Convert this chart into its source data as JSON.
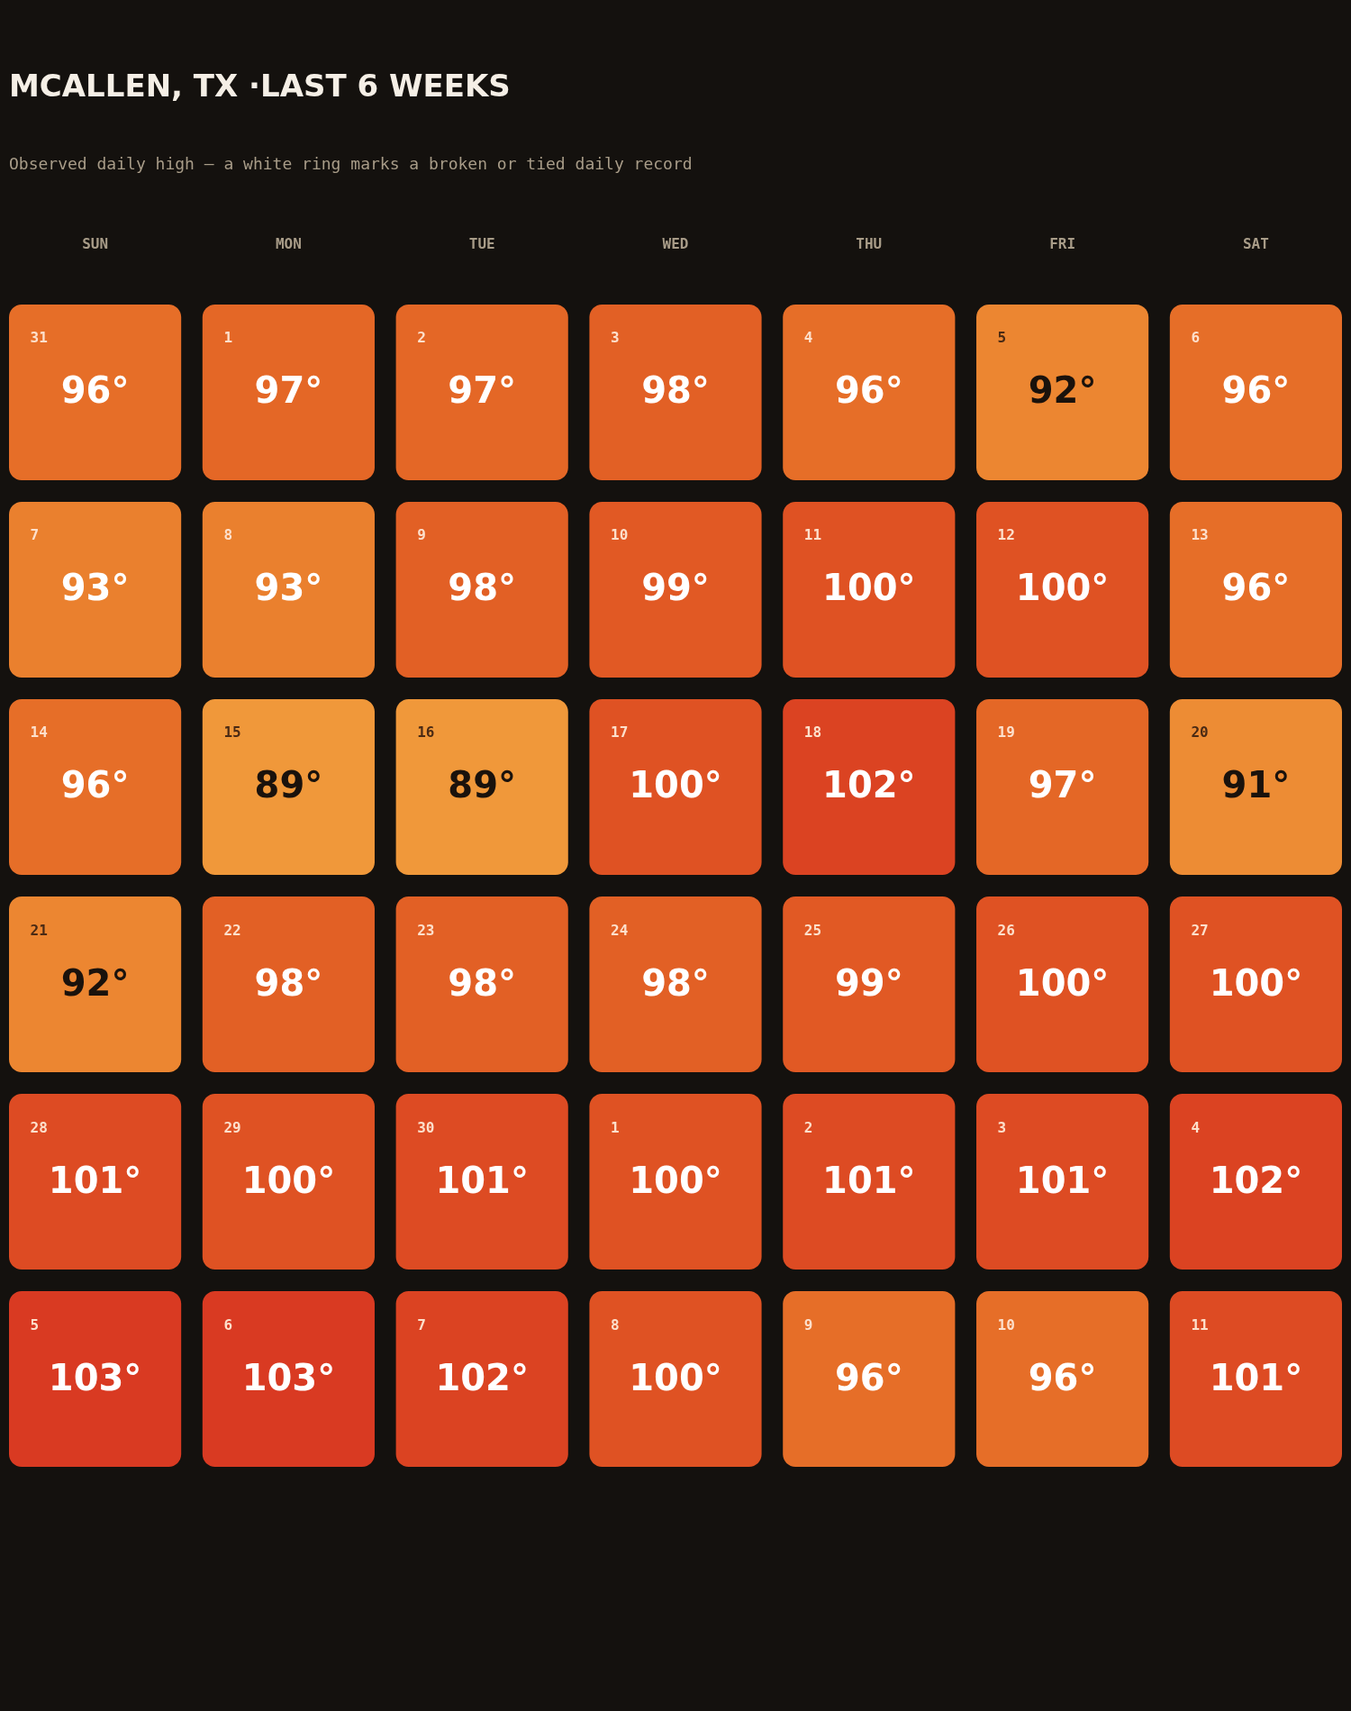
{
  "chart_data": {
    "type": "heatmap",
    "title": "MCALLEN, TX ·LAST 6 WEEKS",
    "subtitle": "Observed daily high — a white ring marks a broken or tied daily record",
    "categories": [
      "SUN",
      "MON",
      "TUE",
      "WED",
      "THU",
      "FRI",
      "SAT"
    ],
    "y_categories": [
      null,
      null,
      null,
      null,
      null,
      null
    ],
    "cells": [
      [
        96,
        97,
        97,
        98,
        96,
        92,
        96
      ],
      [
        93,
        93,
        98,
        99,
        100,
        100,
        96
      ],
      [
        96,
        89,
        89,
        100,
        102,
        97,
        91
      ],
      [
        92,
        98,
        98,
        98,
        99,
        100,
        100
      ],
      [
        101,
        100,
        101,
        100,
        101,
        101,
        102
      ],
      [
        103,
        103,
        102,
        100,
        96,
        96,
        101
      ]
    ],
    "cell_labels": [
      [
        "96°",
        "97°",
        "97°",
        "98°",
        "96°",
        "92°",
        "96°"
      ],
      [
        "93°",
        "93°",
        "98°",
        "99°",
        "100°",
        "100°",
        "96°"
      ],
      [
        "96°",
        "89°",
        "89°",
        "100°",
        "102°",
        "97°",
        "91°"
      ],
      [
        "92°",
        "98°",
        "98°",
        "98°",
        "99°",
        "100°",
        "100°"
      ],
      [
        "101°",
        "100°",
        "101°",
        "100°",
        "101°",
        "101°",
        "102°"
      ],
      [
        "103°",
        "103°",
        "102°",
        "100°",
        "96°",
        "96°",
        "101°"
      ]
    ],
    "annotations": [
      "31",
      "1",
      "2",
      "3",
      "4",
      "5",
      "6",
      "7",
      "8",
      "9",
      "10",
      "11",
      "12",
      "13",
      "14",
      "15",
      "16",
      "17",
      "18",
      "19",
      "20",
      "21",
      "22",
      "23",
      "24",
      "25",
      "26",
      "27",
      "28",
      "29",
      "30",
      "1",
      "2",
      "3",
      "4",
      "5",
      "6",
      "7",
      "8",
      "9",
      "10",
      "11"
    ]
  }
}
